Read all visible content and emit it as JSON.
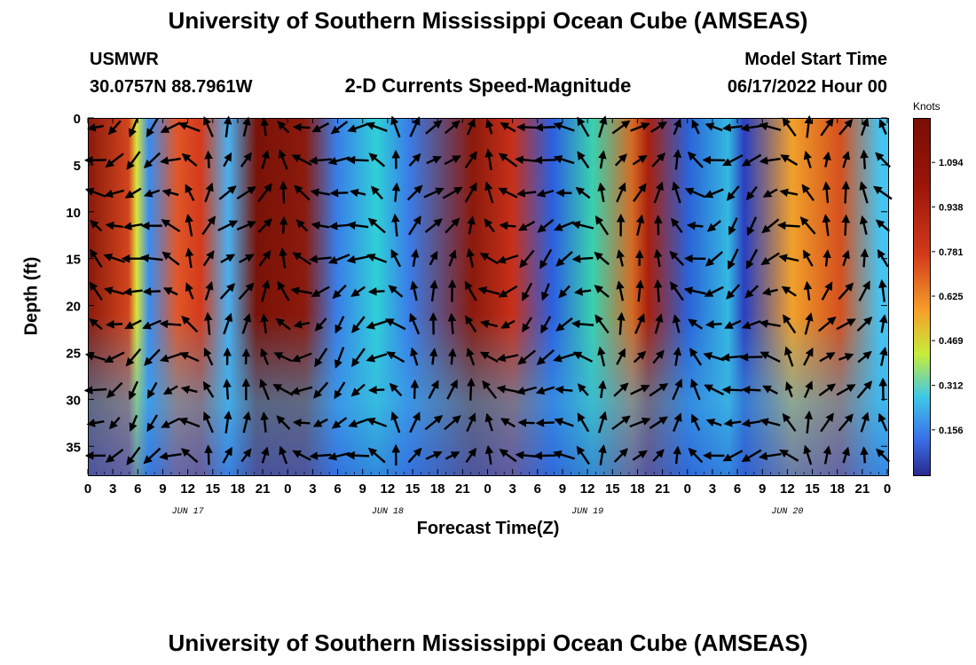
{
  "titles": {
    "top": "University of Southern Mississippi Ocean Cube (AMSEAS)",
    "bottom": "University of Southern Mississippi Ocean Cube (AMSEAS)"
  },
  "header": {
    "station": "USMWR",
    "coords": "30.0757N  88.7961W",
    "product": "2-D Currents Speed-Magnitude",
    "model_start_label": "Model Start Time",
    "model_start_value": "06/17/2022 Hour 00"
  },
  "chart_data": {
    "type": "heatmap",
    "xlabel": "Forecast Time(Z)",
    "ylabel": "Depth (ft)",
    "x_ticks": [
      "0",
      "3",
      "6",
      "9",
      "12",
      "15",
      "18",
      "21",
      "0",
      "3",
      "6",
      "9",
      "12",
      "15",
      "18",
      "21",
      "0",
      "3",
      "6",
      "9",
      "12",
      "15",
      "18",
      "21",
      "0",
      "3",
      "6",
      "9",
      "12",
      "15",
      "18",
      "21",
      "0"
    ],
    "x_hours_range": [
      0,
      96
    ],
    "day_labels": [
      {
        "label": "JUN 17",
        "hour": 12
      },
      {
        "label": "JUN 18",
        "hour": 36
      },
      {
        "label": "JUN 19",
        "hour": 60
      },
      {
        "label": "JUN 20",
        "hour": 84
      }
    ],
    "y_ticks": [
      0,
      5,
      10,
      15,
      20,
      25,
      30,
      35
    ],
    "ylim": [
      0,
      38
    ],
    "y_inverted": true,
    "colorbar": {
      "units": "Knots",
      "tick_labels": [
        "1.094",
        "0.938",
        "0.781",
        "0.625",
        "0.469",
        "0.312",
        "0.156"
      ],
      "tick_values": [
        1.094,
        0.938,
        0.781,
        0.625,
        0.469,
        0.312,
        0.156
      ],
      "range": [
        0,
        1.25
      ],
      "colors": [
        "#2a2a8c",
        "#3a6ee8",
        "#3ec8e8",
        "#c8ec3a",
        "#f6a02a",
        "#d23a1a",
        "#7a0e06"
      ]
    },
    "vector_grid": {
      "hour_step": 2.25,
      "depth_levels": [
        1,
        4.5,
        8,
        11.5,
        15,
        18.5,
        22,
        25.5,
        29,
        32.5,
        36
      ]
    }
  }
}
